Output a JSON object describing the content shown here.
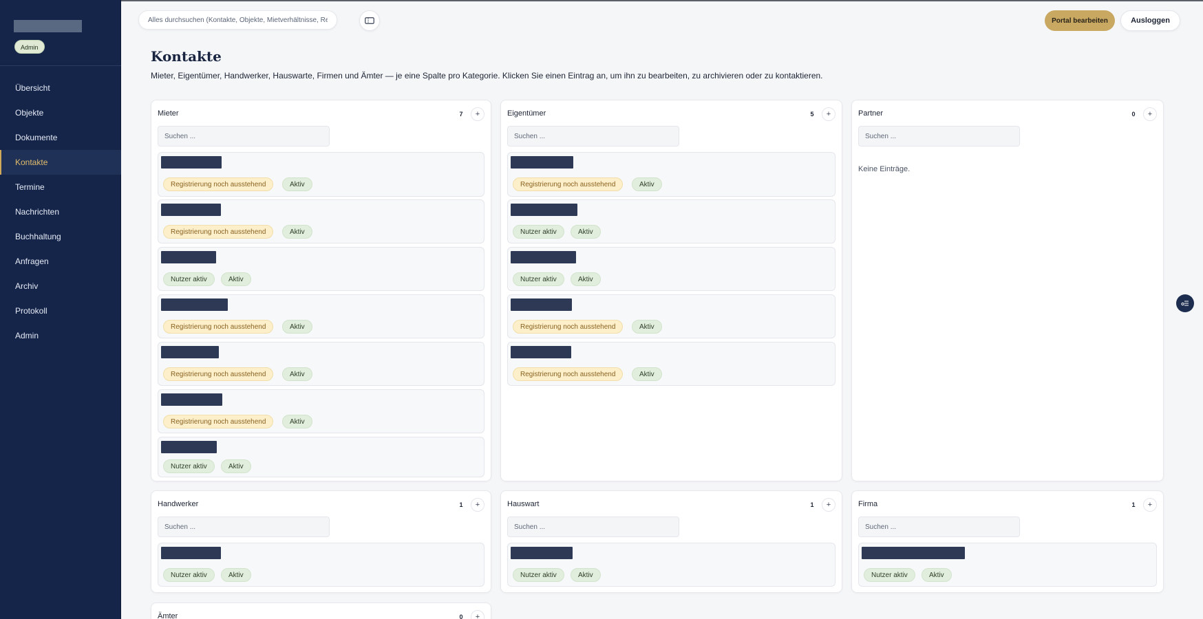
{
  "sidebar": {
    "admin_badge": "Admin",
    "items": [
      {
        "label": "Übersicht"
      },
      {
        "label": "Objekte"
      },
      {
        "label": "Dokumente"
      },
      {
        "label": "Kontakte",
        "active": true
      },
      {
        "label": "Termine"
      },
      {
        "label": "Nachrichten"
      },
      {
        "label": "Buchhaltung"
      },
      {
        "label": "Anfragen"
      },
      {
        "label": "Archiv"
      },
      {
        "label": "Protokoll"
      },
      {
        "label": "Admin"
      }
    ]
  },
  "header": {
    "search_placeholder": "Alles durchsuchen (Kontakte, Objekte, Mietverhältnisse, Rechnungen …)",
    "edit_portal": "Portal bearbeiten",
    "logout": "Ausloggen"
  },
  "page": {
    "title": "Kontakte",
    "subtitle": "Mieter, Eigentümer, Handwerker, Hauswarte, Firmen und Ämter — je eine Spalte pro Kategorie. Klicken Sie einen Eintrag an, um ihn zu bearbeiten, zu archivieren oder zu kontaktieren."
  },
  "search_placeholder": "Suchen ...",
  "empty_text": "Keine Einträge.",
  "chip_labels": {
    "pending": "Registrierung noch ausstehend",
    "user_active": "Nutzer aktiv",
    "active": "Aktiv"
  },
  "columns": [
    {
      "key": "mieter",
      "title": "Mieter",
      "count": "7",
      "entries": [
        [
          "pending",
          "active"
        ],
        [
          "pending",
          "active"
        ],
        [
          "user_active",
          "active"
        ],
        [
          "pending",
          "active"
        ],
        [
          "pending",
          "active"
        ],
        [
          "pending",
          "active"
        ],
        [
          "user_active",
          "active"
        ]
      ]
    },
    {
      "key": "eigentuemer",
      "title": "Eigentümer",
      "count": "5",
      "entries": [
        [
          "pending",
          "active"
        ],
        [
          "user_active",
          "active"
        ],
        [
          "user_active",
          "active"
        ],
        [
          "pending",
          "active"
        ],
        [
          "pending",
          "active"
        ]
      ]
    },
    {
      "key": "partner",
      "title": "Partner",
      "count": "0",
      "entries": []
    },
    {
      "key": "handwerker",
      "title": "Handwerker",
      "count": "1",
      "entries": [
        [
          "user_active",
          "active"
        ]
      ]
    },
    {
      "key": "hauswart",
      "title": "Hauswart",
      "count": "1",
      "entries": [
        [
          "user_active",
          "active"
        ]
      ]
    },
    {
      "key": "firma",
      "title": "Firma",
      "count": "1",
      "entries": [
        [
          "user_active",
          "active"
        ]
      ]
    },
    {
      "key": "aemter",
      "title": "Ämter",
      "count": "0",
      "entries": []
    }
  ],
  "colors": {
    "sidebar_bg": "#15254a",
    "accent_gold": "#c9a862",
    "pending_chip": "#fcefc9",
    "active_chip": "#e1eedd"
  }
}
